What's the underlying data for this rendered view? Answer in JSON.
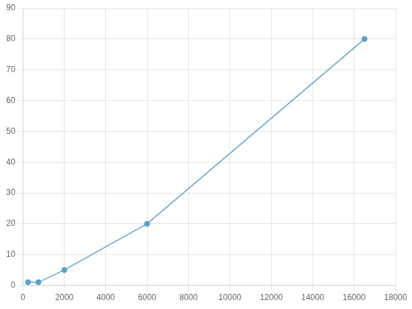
{
  "chart_data": {
    "type": "line",
    "x": [
      250,
      750,
      2000,
      6000,
      16500
    ],
    "values": [
      1,
      1,
      5,
      20,
      80
    ],
    "color": "#5ba3c9",
    "marker": "circle",
    "xlim": [
      0,
      18000
    ],
    "ylim": [
      0,
      90
    ],
    "xticks": [
      0,
      2000,
      4000,
      6000,
      8000,
      10000,
      12000,
      14000,
      16000,
      18000
    ],
    "yticks": [
      0,
      10,
      20,
      30,
      40,
      50,
      60,
      70,
      80,
      90
    ],
    "grid": true
  }
}
